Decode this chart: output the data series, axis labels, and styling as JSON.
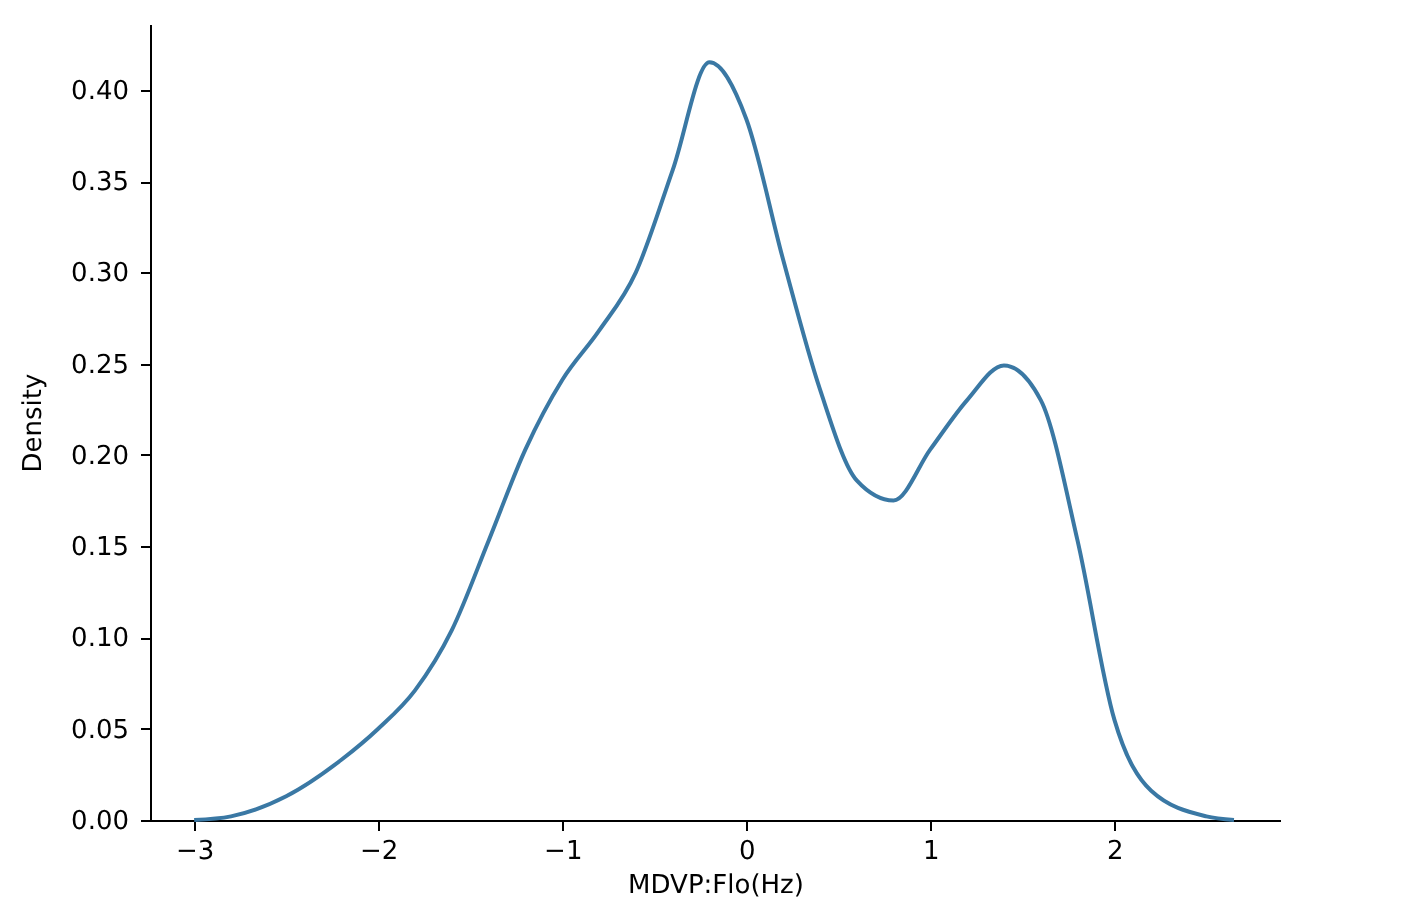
{
  "chart_data": {
    "type": "line",
    "xlabel": "MDVP:Flo(Hz)",
    "ylabel": "Density",
    "x": [
      -3.0,
      -2.8,
      -2.5,
      -2.2,
      -2.0,
      -1.8,
      -1.6,
      -1.4,
      -1.2,
      -1.0,
      -0.8,
      -0.6,
      -0.4,
      -0.2,
      0.0,
      0.2,
      0.4,
      0.6,
      0.8,
      1.0,
      1.2,
      1.4,
      1.6,
      1.8,
      2.0,
      2.2,
      2.5,
      2.65
    ],
    "values": [
      0.0,
      0.002,
      0.013,
      0.033,
      0.05,
      0.071,
      0.104,
      0.153,
      0.203,
      0.241,
      0.268,
      0.3,
      0.356,
      0.415,
      0.384,
      0.307,
      0.236,
      0.186,
      0.175,
      0.203,
      0.23,
      0.249,
      0.23,
      0.153,
      0.055,
      0.016,
      0.002,
      0.0
    ],
    "color": "#3a78a4",
    "xlim": [
      -3.24,
      2.9
    ],
    "ylim": [
      0,
      0.436
    ],
    "xticks": [
      -3,
      -2,
      -1,
      0,
      1,
      2
    ],
    "yticks": [
      {
        "value": 0,
        "label": "0.00"
      },
      0.05,
      {
        "value": 0.1,
        "label": "0.10"
      },
      0.15,
      {
        "value": 0.2,
        "label": "0.20"
      },
      0.25,
      {
        "value": 0.3,
        "label": "0.30"
      },
      0.35,
      {
        "value": 0.4,
        "label": "0.40"
      }
    ],
    "grid": false,
    "marker": "none",
    "line_style": "solid"
  }
}
